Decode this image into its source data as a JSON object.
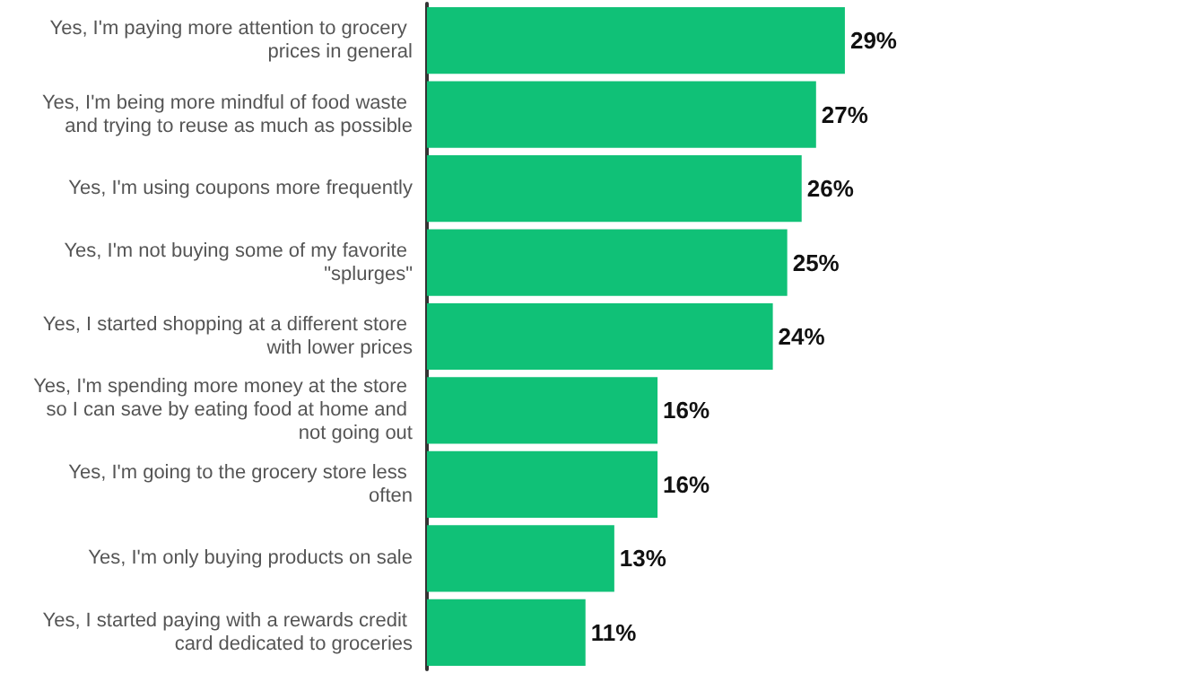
{
  "chart_data": {
    "type": "bar",
    "orientation": "horizontal",
    "categories": [
      "Yes, I'm paying more attention to grocery prices in general",
      "Yes, I'm being more mindful of food waste and trying to reuse as much as possible",
      "Yes, I'm using coupons more frequently",
      "Yes, I'm not buying some of my favorite \"splurges\"",
      "Yes, I started shopping at a different store with lower prices",
      "Yes, I'm spending more money at the store so I can save by eating food at home and not going out",
      "Yes, I'm going to the grocery store less often",
      "Yes, I'm only buying products on sale",
      "Yes, I started paying with a rewards credit card dedicated to groceries"
    ],
    "values": [
      29,
      27,
      26,
      25,
      24,
      16,
      16,
      13,
      11
    ],
    "value_labels": [
      "29%",
      "27%",
      "26%",
      "25%",
      "24%",
      "16%",
      "16%",
      "13%",
      "11%"
    ],
    "color": "#10c177",
    "grid": false
  }
}
